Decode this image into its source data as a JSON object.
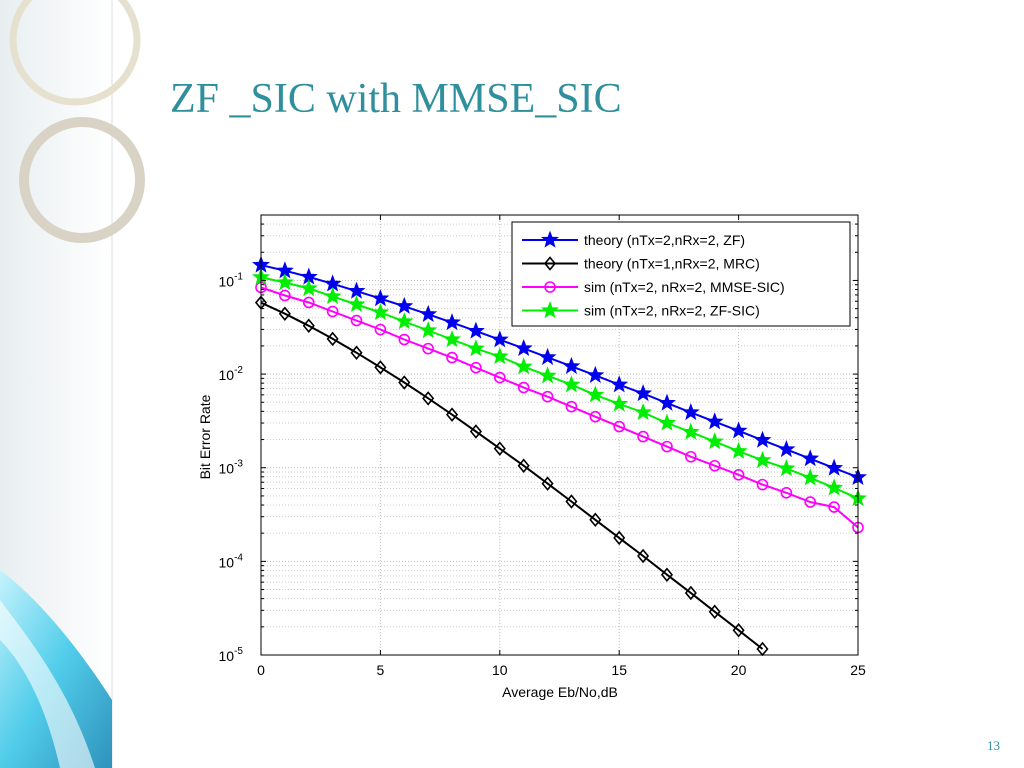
{
  "slide": {
    "title": "ZF _SIC with MMSE_SIC",
    "page_number": "13"
  },
  "chart_data": {
    "type": "line",
    "xlabel": "Average Eb/No,dB",
    "ylabel": "Bit Error Rate",
    "x": [
      0,
      1,
      2,
      3,
      4,
      5,
      6,
      7,
      8,
      9,
      10,
      11,
      12,
      13,
      14,
      15,
      16,
      17,
      18,
      19,
      20,
      21,
      22,
      23,
      24,
      25
    ],
    "xlim": [
      0,
      25
    ],
    "xticks": [
      0,
      5,
      10,
      15,
      20,
      25
    ],
    "ylim": [
      1e-05,
      0.5
    ],
    "yscale": "log",
    "yticks": [
      {
        "value": 1e-05,
        "label": "10",
        "exponent": "-5"
      },
      {
        "value": 0.0001,
        "label": "10",
        "exponent": "-4"
      },
      {
        "value": 0.001,
        "label": "10",
        "exponent": "-3"
      },
      {
        "value": 0.01,
        "label": "10",
        "exponent": "-2"
      },
      {
        "value": 0.1,
        "label": "10",
        "exponent": "-1"
      }
    ],
    "grid": true,
    "minor_grid": true,
    "legend": "upper right",
    "series": [
      {
        "name": "theory (nTx=2,nRx=2, ZF)",
        "color": "#0000ee",
        "marker": "star",
        "values": [
          0.146,
          0.127,
          0.109,
          0.092,
          0.077,
          0.064,
          0.053,
          0.0435,
          0.0355,
          0.0288,
          0.0233,
          0.0188,
          0.0151,
          0.0121,
          0.0097,
          0.0077,
          0.0062,
          0.0049,
          0.0039,
          0.0031,
          0.00248,
          0.00197,
          0.00157,
          0.00125,
          0.00099,
          0.00079
        ]
      },
      {
        "name": "theory (nTx=1,nRx=2, MRC)",
        "color": "#000000",
        "marker": "diamond",
        "values": [
          0.058,
          0.0441,
          0.0328,
          0.0238,
          0.0169,
          0.0118,
          0.00813,
          0.00551,
          0.00369,
          0.00244,
          0.0016,
          0.00105,
          0.000677,
          0.000436,
          0.000278,
          0.000178,
          0.000114,
          7.2e-05,
          4.6e-05,
          2.9e-05,
          1.84e-05,
          1.16e-05,
          null,
          null,
          null,
          null
        ]
      },
      {
        "name": "sim (nTx=2, nRx=2, MMSE-SIC)",
        "color": "#ff00ff",
        "marker": "circle",
        "values": [
          0.0842,
          0.0691,
          0.0582,
          0.0466,
          0.0373,
          0.0299,
          0.0234,
          0.0187,
          0.015,
          0.0117,
          0.00918,
          0.00718,
          0.00574,
          0.00449,
          0.00351,
          0.00275,
          0.00215,
          0.00168,
          0.00131,
          0.00105,
          0.00084,
          0.00066,
          0.00054,
          0.00043,
          0.00038,
          0.00023
        ]
      },
      {
        "name": "sim (nTx=2, nRx=2, ZF-SIC)",
        "color": "#00ee00",
        "marker": "star",
        "values": [
          0.108,
          0.095,
          0.082,
          0.0675,
          0.0554,
          0.0455,
          0.0364,
          0.0292,
          0.0234,
          0.0187,
          0.0154,
          0.012,
          0.0096,
          0.0077,
          0.006,
          0.0048,
          0.0039,
          0.003,
          0.0024,
          0.0019,
          0.0015,
          0.0012,
          0.00098,
          0.00078,
          0.00061,
          0.00047
        ]
      }
    ]
  }
}
